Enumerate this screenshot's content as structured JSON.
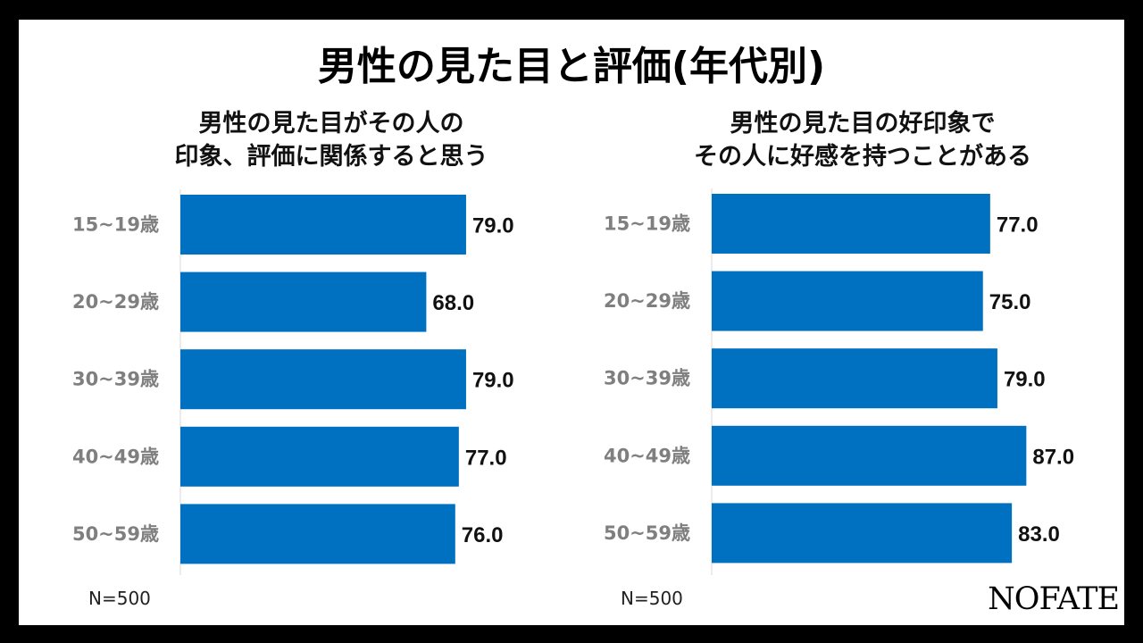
{
  "title": "男性の見た目と評価(年代別)",
  "brand": "NOFATE",
  "bar_color": "#0070C0",
  "chart_data": [
    {
      "type": "bar",
      "orientation": "horizontal",
      "title_lines": [
        "男性の見た目がその人の",
        "印象、評価に関係すると思う"
      ],
      "categories": [
        "15~19歳",
        "20~29歳",
        "30~39歳",
        "40~49歳",
        "50~59歳"
      ],
      "values": [
        79.0,
        68.0,
        79.0,
        77.0,
        76.0
      ],
      "value_labels": [
        "79.0",
        "68.0",
        "79.0",
        "77.0",
        "76.0"
      ],
      "sample_size": "N=500",
      "xlim": [
        0,
        100
      ],
      "grid": false,
      "legend": "none"
    },
    {
      "type": "bar",
      "orientation": "horizontal",
      "title_lines": [
        "男性の見た目の好印象で",
        "その人に好感を持つことがある"
      ],
      "categories": [
        "15~19歳",
        "20~29歳",
        "30~39歳",
        "40~49歳",
        "50~59歳"
      ],
      "values": [
        77.0,
        75.0,
        79.0,
        87.0,
        83.0
      ],
      "value_labels": [
        "77.0",
        "75.0",
        "79.0",
        "87.0",
        "83.0"
      ],
      "sample_size": "N=500",
      "xlim": [
        0,
        100
      ],
      "grid": false,
      "legend": "none"
    }
  ]
}
